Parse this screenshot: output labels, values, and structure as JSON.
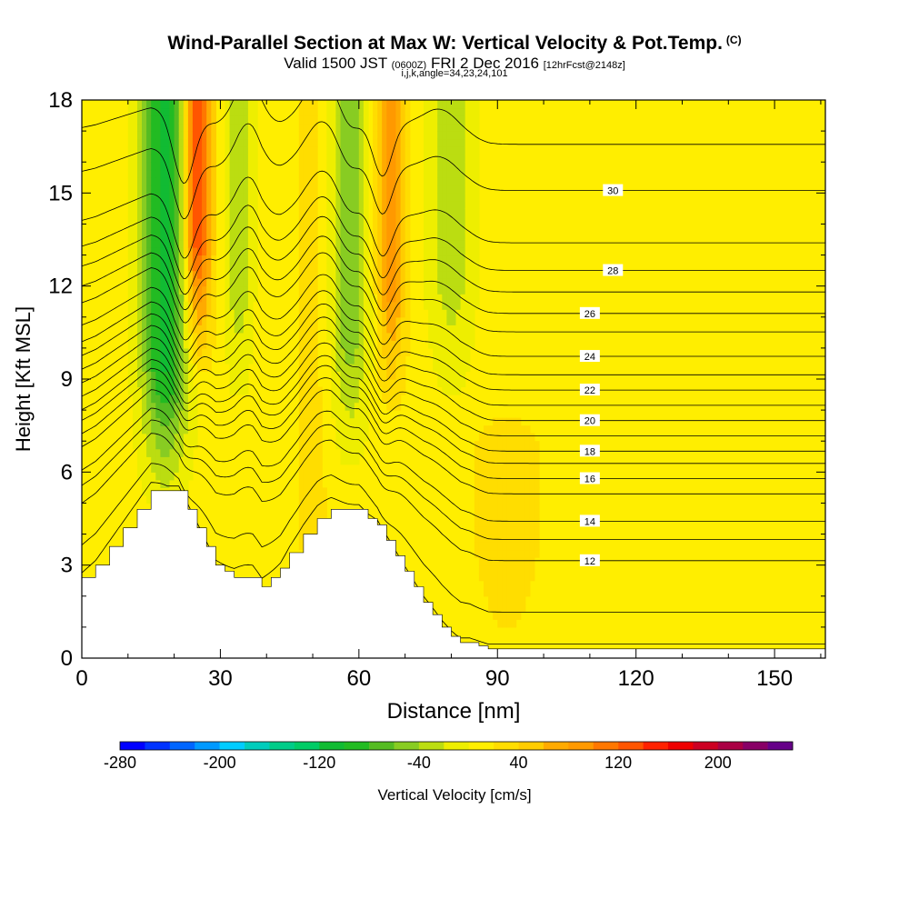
{
  "header": {
    "title": "Wind-Parallel Section at Max W: Vertical Velocity & Pot.Temp.",
    "copyright": "(C)",
    "valid_prefix": "Valid 1500 JST",
    "valid_utc": "(0600Z)",
    "valid_date": "FRI 2 Dec 2016",
    "forecast": "[12hrFcst@2148z]",
    "indices": "i,j,k,angle=34,23,24,101"
  },
  "chart_data": {
    "type": "heatmap",
    "xlabel": "Distance [nm]",
    "ylabel": "Height [Kft MSL]",
    "xlim": [
      0,
      161
    ],
    "ylim": [
      0,
      18
    ],
    "x_ticks": [
      0,
      30,
      60,
      90,
      120,
      150
    ],
    "y_ticks": [
      0,
      3,
      6,
      9,
      12,
      15,
      18
    ],
    "grid": false,
    "background_velocity_cms": 10,
    "vertical_velocity_features": [
      {
        "type": "downdraft",
        "x_center": 18,
        "x_width": 5,
        "y_from": 6,
        "y_to": 18,
        "value": -110
      },
      {
        "type": "updraft",
        "x_center": 25,
        "x_width": 3,
        "y_from": 10,
        "y_to": 18,
        "value": 150
      },
      {
        "type": "downdraft",
        "x_center": 34,
        "x_width": 3,
        "y_from": 9,
        "y_to": 18,
        "value": -40
      },
      {
        "type": "updraft",
        "x_center": 50,
        "x_width": 4,
        "y_from": 0,
        "y_to": 18,
        "value": 25
      },
      {
        "type": "downdraft",
        "x_center": 58,
        "x_width": 4,
        "y_from": 7,
        "y_to": 18,
        "value": -55
      },
      {
        "type": "updraft",
        "x_center": 67,
        "x_width": 3,
        "y_from": 9,
        "y_to": 18,
        "value": 100
      },
      {
        "type": "downdraft",
        "x_center": 80,
        "x_width": 5,
        "y_from": 9,
        "y_to": 18,
        "value": -35
      },
      {
        "type": "updraft",
        "x_center": 92,
        "x_width": 8,
        "y_from": 0,
        "y_to": 7,
        "value": 30
      },
      {
        "type": "updraft",
        "x_center": 130,
        "x_width": 8,
        "y_from": 0,
        "y_to": 18,
        "value": 20
      },
      {
        "type": "updraft",
        "x_center": 155,
        "x_width": 6,
        "y_from": 0,
        "y_to": 18,
        "value": 15
      }
    ],
    "terrain": {
      "x": [
        0,
        3,
        6,
        9,
        12,
        15,
        18,
        21,
        23,
        25,
        27,
        29,
        31,
        33,
        35,
        37,
        39,
        41,
        43,
        45,
        48,
        51,
        54,
        57,
        60,
        62,
        64,
        66,
        68,
        70,
        72,
        74,
        76,
        78,
        80,
        82,
        84,
        86,
        88,
        90,
        92,
        100,
        120,
        140,
        160,
        161
      ],
      "height": [
        2.6,
        3.0,
        3.6,
        4.2,
        4.8,
        5.4,
        5.4,
        5.4,
        4.8,
        4.2,
        3.6,
        3.0,
        2.8,
        2.6,
        2.6,
        2.6,
        2.3,
        2.6,
        2.9,
        3.4,
        4.0,
        4.5,
        4.8,
        4.8,
        4.8,
        4.5,
        4.3,
        3.8,
        3.3,
        2.8,
        2.3,
        1.8,
        1.4,
        1.0,
        0.7,
        0.5,
        0.5,
        0.4,
        0.3,
        0.3,
        0.3,
        0.3,
        0.3,
        0.3,
        0.3,
        0.3
      ]
    },
    "theta_contours": {
      "levels": [
        10,
        11,
        12,
        13,
        14,
        15,
        16,
        17,
        18,
        19,
        20,
        21,
        22,
        23,
        24,
        25,
        26,
        27,
        28,
        29,
        30,
        31
      ],
      "far_field_height_kft": [
        0.0,
        1.2,
        2.9,
        3.6,
        4.2,
        5.1,
        5.6,
        6.1,
        6.5,
        7.0,
        7.5,
        8.0,
        8.5,
        9.0,
        9.6,
        10.4,
        11.0,
        11.7,
        12.4,
        13.3,
        15.0,
        16.5
      ],
      "labeled_levels": [
        12,
        14,
        16,
        18,
        20,
        22,
        24,
        26,
        28,
        30
      ]
    },
    "colorbar": {
      "label": "Vertical Velocity [cm/s]",
      "min": -280,
      "max": 240,
      "step": 20,
      "tick_values": [
        -280,
        -200,
        -120,
        -40,
        40,
        120,
        200
      ],
      "tick_labels": [
        "-280",
        "-200",
        "-120",
        "-40",
        "40",
        "120",
        "200"
      ],
      "colors": [
        "#0000ff",
        "#0033ff",
        "#0066ff",
        "#0099ff",
        "#00ccff",
        "#00ccbb",
        "#00cc88",
        "#00cc66",
        "#11bb33",
        "#22bb22",
        "#55bb22",
        "#88cc22",
        "#bbdd11",
        "#eeee00",
        "#ffee00",
        "#ffdd00",
        "#ffcc00",
        "#ffaa00",
        "#ff9900",
        "#ff7700",
        "#ff5500",
        "#ff2200",
        "#ee0000",
        "#cc0022",
        "#aa0044",
        "#880066",
        "#660088"
      ]
    }
  }
}
